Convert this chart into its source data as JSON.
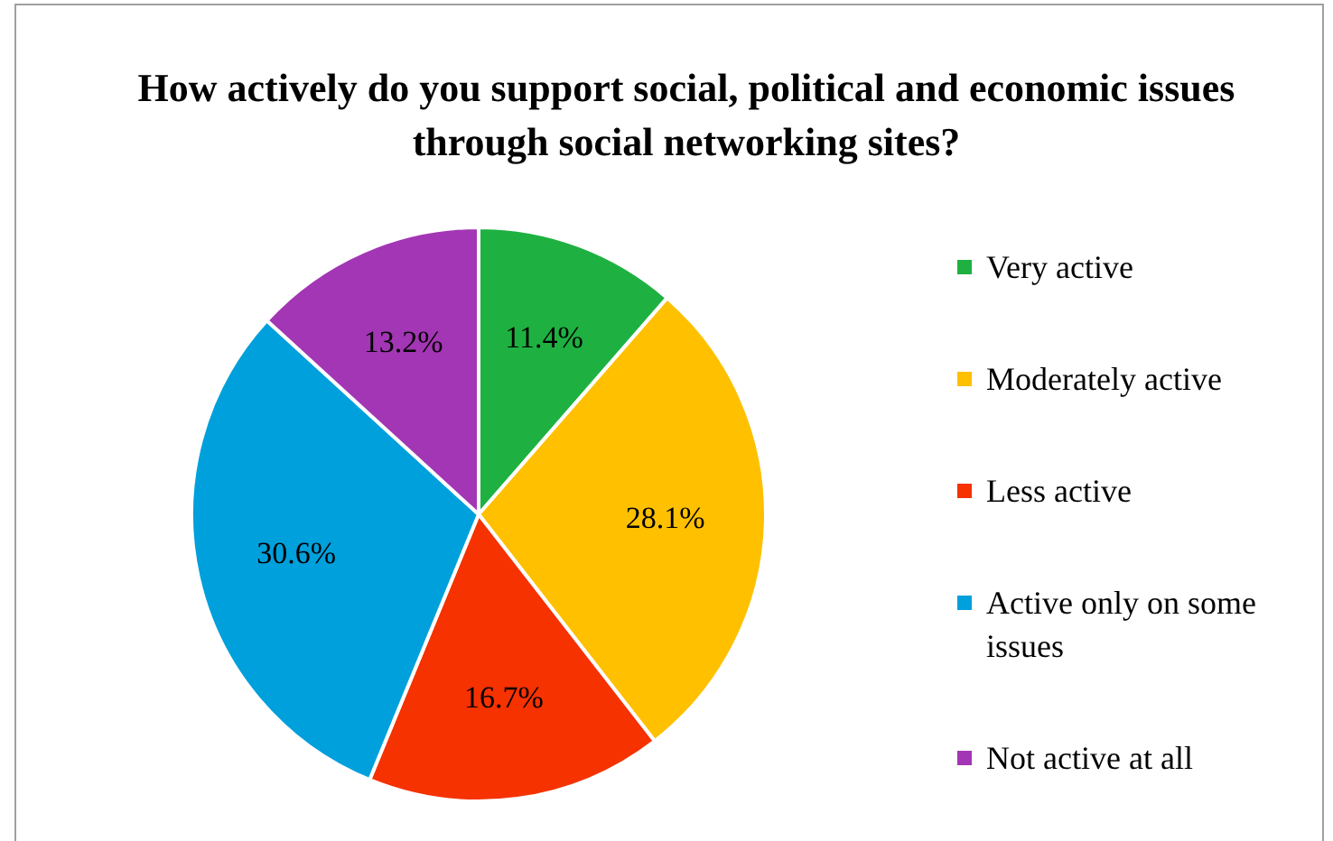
{
  "chart_data": {
    "type": "pie",
    "title": "How actively do you support social, political and economic issues through social networking sites?",
    "categories": [
      "Very active",
      "Moderately active",
      "Less active",
      "Active only on some issues",
      "Not active at all"
    ],
    "values": [
      11.4,
      28.1,
      16.7,
      30.6,
      13.2
    ],
    "colors": [
      "#1eb141",
      "#ffc000",
      "#f53200",
      "#00a0dc",
      "#a336b4"
    ],
    "value_labels": [
      "11.4%",
      "28.1%",
      "16.7%",
      "30.6%",
      "13.2%"
    ],
    "legend": "right"
  }
}
